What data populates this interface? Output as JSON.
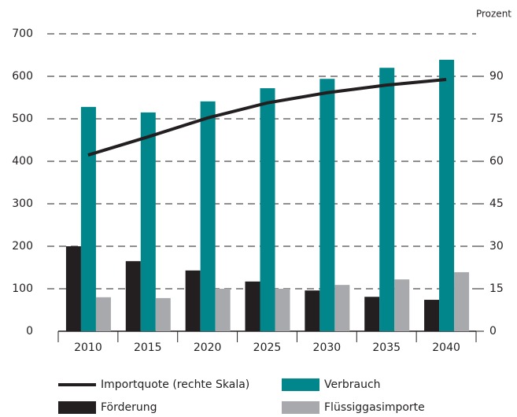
{
  "chart_data": {
    "type": "bar",
    "y2_label": "Prozent",
    "categories": [
      "2010",
      "2015",
      "2020",
      "2025",
      "2030",
      "2035",
      "2040"
    ],
    "series": [
      {
        "name": "Förderung",
        "color": "#231f20",
        "values": [
          200,
          165,
          143,
          117,
          96,
          81,
          74
        ]
      },
      {
        "name": "Verbrauch",
        "color": "#00868b",
        "values": [
          528,
          515,
          541,
          572,
          594,
          620,
          639
        ]
      },
      {
        "name": "Flüssiggasimporte",
        "color": "#a7a9ac",
        "values": [
          80,
          78,
          100,
          100,
          109,
          122,
          139
        ]
      },
      {
        "name": "Importquote (rechte Skala)",
        "color": "#231f20",
        "type": "line",
        "axis": "y2",
        "values": [
          62.2,
          68.6,
          75.3,
          80.6,
          84.2,
          86.9,
          88.9
        ]
      }
    ],
    "ylim": [
      0,
      700
    ],
    "yticks": [
      0,
      100,
      200,
      300,
      400,
      500,
      600,
      700
    ],
    "y2lim": [
      0,
      105
    ],
    "y2ticks": [
      0,
      15,
      30,
      45,
      60,
      75,
      90
    ],
    "grid": true
  }
}
